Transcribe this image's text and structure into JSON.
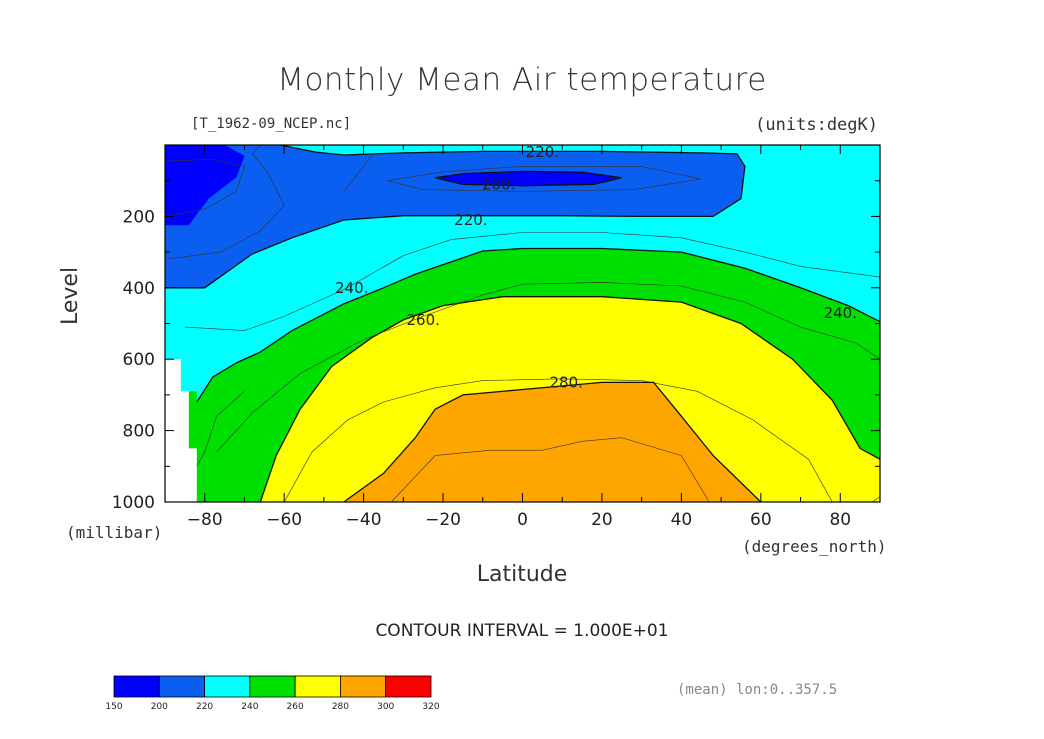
{
  "chart_data": {
    "type": "heatmap",
    "title": "Monthly Mean Air temperature",
    "file_label": "[T_1962-09_NCEP.nc]",
    "units_label": "(units:degK)",
    "xlabel": "Latitude",
    "x_units": "(degrees_north)",
    "ylabel": "Level",
    "y_units": "(millibar)",
    "xlim": [
      -90,
      90
    ],
    "ylim": [
      1000,
      0
    ],
    "x_ticks": [
      -80,
      -60,
      -40,
      -20,
      0,
      20,
      40,
      60,
      80
    ],
    "y_ticks": [
      200,
      400,
      600,
      800,
      1000
    ],
    "contour_interval_text": "CONTOUR INTERVAL = 1.000E+01",
    "mean_note": "(mean) lon:0..357.5",
    "contour_labels": [
      {
        "text": "220.",
        "lat": 5,
        "level": 20
      },
      {
        "text": "200.",
        "lat": -6,
        "level": 110
      },
      {
        "text": "220.",
        "lat": -13,
        "level": 210
      },
      {
        "text": "240.",
        "lat": -43,
        "level": 400
      },
      {
        "text": "260.",
        "lat": -25,
        "level": 490
      },
      {
        "text": "280.",
        "lat": 11,
        "level": 665
      },
      {
        "text": "240.",
        "lat": 80,
        "level": 470
      }
    ],
    "colorbar": {
      "levels": [
        150,
        200,
        220,
        240,
        260,
        280,
        300,
        320
      ],
      "colors": [
        "#0000ff",
        "#0a5ff0",
        "#00ffff",
        "#00e000",
        "#ffff00",
        "#ffa500",
        "#ff0000"
      ]
    },
    "filled_regions": [
      {
        "band": "220-240",
        "color": "#00ffff",
        "points": [
          [
            -90,
            0
          ],
          [
            90,
            0
          ],
          [
            90,
            500
          ],
          [
            76,
            440
          ],
          [
            56,
            392
          ],
          [
            40,
            365
          ],
          [
            20,
            352
          ],
          [
            0,
            346
          ],
          [
            -20,
            346
          ],
          [
            -40,
            360
          ],
          [
            -52,
            385
          ],
          [
            -62,
            420
          ],
          [
            -72,
            455
          ],
          [
            -81,
            478
          ],
          [
            -90,
            485
          ]
        ]
      },
      {
        "band": "200-220",
        "color": "#0a5ff0",
        "points": [
          [
            -90,
            0
          ],
          [
            -61,
            0
          ],
          [
            -52,
            20
          ],
          [
            -45,
            28
          ],
          [
            -30,
            22
          ],
          [
            -10,
            18
          ],
          [
            20,
            18
          ],
          [
            45,
            22
          ],
          [
            54,
            25
          ],
          [
            56,
            60
          ],
          [
            55,
            150
          ],
          [
            48,
            200
          ],
          [
            30,
            200
          ],
          [
            10,
            198
          ],
          [
            -10,
            198
          ],
          [
            -30,
            198
          ],
          [
            -45,
            210
          ],
          [
            -58,
            260
          ],
          [
            -68,
            305
          ],
          [
            -80,
            400
          ],
          [
            -90,
            400
          ]
        ]
      },
      {
        "band": "150-200",
        "color": "#0000ff",
        "points": [
          [
            -90,
            0
          ],
          [
            -75,
            0
          ],
          [
            -70,
            30
          ],
          [
            -72,
            90
          ],
          [
            -79,
            150
          ],
          [
            -84,
            225
          ],
          [
            -90,
            225
          ]
        ]
      },
      {
        "band": "150-200",
        "color": "#0000ff",
        "points": [
          [
            -22,
            92
          ],
          [
            -15,
            80
          ],
          [
            0,
            74
          ],
          [
            15,
            76
          ],
          [
            25,
            92
          ],
          [
            18,
            110
          ],
          [
            0,
            114
          ],
          [
            -15,
            110
          ]
        ]
      },
      {
        "band": "240-260",
        "color": "#00e000",
        "points": [
          [
            -90,
            1000
          ],
          [
            -90,
            610
          ],
          [
            -86,
            600
          ],
          [
            -86,
            690
          ],
          [
            -82,
            690
          ],
          [
            -82,
            720
          ],
          [
            -78,
            650
          ],
          [
            -72,
            610
          ],
          [
            -66,
            580
          ],
          [
            -58,
            520
          ],
          [
            -45,
            445
          ],
          [
            -35,
            400
          ],
          [
            -27,
            362
          ],
          [
            -20,
            335
          ],
          [
            -10,
            297
          ],
          [
            0,
            290
          ],
          [
            20,
            290
          ],
          [
            40,
            300
          ],
          [
            56,
            345
          ],
          [
            70,
            400
          ],
          [
            82,
            450
          ],
          [
            90,
            495
          ],
          [
            90,
            1000
          ]
        ]
      },
      {
        "band": "260-280",
        "color": "#ffff00",
        "points": [
          [
            -66,
            1000
          ],
          [
            -62,
            870
          ],
          [
            -56,
            740
          ],
          [
            -48,
            620
          ],
          [
            -38,
            540
          ],
          [
            -30,
            490
          ],
          [
            -20,
            450
          ],
          [
            -5,
            425
          ],
          [
            20,
            425
          ],
          [
            40,
            440
          ],
          [
            55,
            500
          ],
          [
            68,
            600
          ],
          [
            78,
            715
          ],
          [
            85,
            850
          ],
          [
            90,
            880
          ],
          [
            90,
            1000
          ]
        ]
      },
      {
        "band": "280-300",
        "color": "#ffa500",
        "points": [
          [
            -45,
            1000
          ],
          [
            -35,
            920
          ],
          [
            -27,
            820
          ],
          [
            -22,
            740
          ],
          [
            -15,
            700
          ],
          [
            0,
            685
          ],
          [
            20,
            665
          ],
          [
            33,
            665
          ],
          [
            40,
            760
          ],
          [
            48,
            870
          ],
          [
            60,
            1000
          ]
        ]
      }
    ],
    "contour_lines": [
      {
        "level": 200,
        "points": [
          [
            -22,
            92
          ],
          [
            -15,
            80
          ],
          [
            0,
            74
          ],
          [
            15,
            76
          ],
          [
            25,
            92
          ],
          [
            18,
            110
          ],
          [
            0,
            114
          ],
          [
            -15,
            110
          ],
          [
            -22,
            92
          ]
        ]
      },
      {
        "level": 220,
        "points": [
          [
            -61,
            0
          ],
          [
            -52,
            20
          ],
          [
            -45,
            28
          ],
          [
            -30,
            22
          ],
          [
            -10,
            18
          ],
          [
            20,
            18
          ],
          [
            45,
            22
          ],
          [
            54,
            25
          ],
          [
            56,
            60
          ],
          [
            55,
            150
          ],
          [
            48,
            200
          ],
          [
            30,
            200
          ],
          [
            10,
            198
          ],
          [
            -10,
            198
          ],
          [
            -30,
            198
          ],
          [
            -45,
            210
          ],
          [
            -58,
            260
          ],
          [
            -68,
            305
          ],
          [
            -80,
            400
          ],
          [
            -90,
            400
          ]
        ]
      },
      {
        "level": 240,
        "points": [
          [
            -82,
            720
          ],
          [
            -78,
            650
          ],
          [
            -72,
            610
          ],
          [
            -66,
            580
          ],
          [
            -58,
            520
          ],
          [
            -45,
            445
          ],
          [
            -35,
            400
          ],
          [
            -27,
            362
          ],
          [
            -20,
            335
          ],
          [
            -10,
            297
          ],
          [
            0,
            290
          ],
          [
            20,
            290
          ],
          [
            40,
            300
          ],
          [
            56,
            345
          ],
          [
            70,
            400
          ],
          [
            82,
            450
          ],
          [
            90,
            495
          ]
        ]
      },
      {
        "level": 260,
        "points": [
          [
            -66,
            1000
          ],
          [
            -62,
            870
          ],
          [
            -56,
            740
          ],
          [
            -48,
            620
          ],
          [
            -38,
            540
          ],
          [
            -30,
            490
          ],
          [
            -20,
            450
          ],
          [
            -5,
            425
          ],
          [
            20,
            425
          ],
          [
            40,
            440
          ],
          [
            55,
            500
          ],
          [
            68,
            600
          ],
          [
            78,
            715
          ],
          [
            85,
            850
          ],
          [
            90,
            880
          ]
        ]
      },
      {
        "level": 280,
        "points": [
          [
            -45,
            1000
          ],
          [
            -35,
            920
          ],
          [
            -27,
            820
          ],
          [
            -22,
            740
          ],
          [
            -15,
            700
          ],
          [
            0,
            685
          ],
          [
            20,
            665
          ],
          [
            33,
            665
          ],
          [
            40,
            760
          ],
          [
            48,
            870
          ],
          [
            60,
            1000
          ]
        ]
      }
    ],
    "minor_contours": [
      {
        "points": [
          [
            -90,
            45
          ],
          [
            -78,
            40
          ],
          [
            -70,
            60
          ],
          [
            -72,
            130
          ],
          [
            -80,
            180
          ],
          [
            -90,
            200
          ]
        ]
      },
      {
        "points": [
          [
            -34,
            100
          ],
          [
            -20,
            75
          ],
          [
            0,
            60
          ],
          [
            30,
            60
          ],
          [
            45,
            95
          ],
          [
            28,
            125
          ],
          [
            0,
            130
          ],
          [
            -25,
            125
          ],
          [
            -34,
            100
          ]
        ]
      },
      {
        "points": [
          [
            -90,
            320
          ],
          [
            -76,
            300
          ],
          [
            -66,
            240
          ],
          [
            -60,
            170
          ],
          [
            -64,
            80
          ],
          [
            -68,
            25
          ],
          [
            -66,
            0
          ]
        ]
      },
      {
        "points": [
          [
            -45,
            130
          ],
          [
            -40,
            60
          ],
          [
            -38,
            30
          ]
        ]
      },
      {
        "points": [
          [
            -85,
            510
          ],
          [
            -70,
            520
          ],
          [
            -60,
            480
          ],
          [
            -45,
            405
          ],
          [
            -30,
            310
          ],
          [
            -18,
            265
          ],
          [
            0,
            245
          ],
          [
            20,
            245
          ],
          [
            40,
            260
          ],
          [
            56,
            300
          ],
          [
            70,
            340
          ],
          [
            90,
            370
          ]
        ]
      },
      {
        "points": [
          [
            -77,
            860
          ],
          [
            -68,
            750
          ],
          [
            -56,
            640
          ],
          [
            -40,
            545
          ],
          [
            -25,
            480
          ],
          [
            -10,
            420
          ],
          [
            0,
            390
          ],
          [
            20,
            385
          ],
          [
            40,
            395
          ],
          [
            56,
            440
          ],
          [
            70,
            510
          ],
          [
            84,
            555
          ],
          [
            90,
            600
          ]
        ]
      },
      {
        "points": [
          [
            -60,
            1000
          ],
          [
            -53,
            860
          ],
          [
            -44,
            770
          ],
          [
            -35,
            720
          ],
          [
            -22,
            680
          ],
          [
            -10,
            660
          ],
          [
            10,
            655
          ],
          [
            30,
            660
          ],
          [
            44,
            690
          ],
          [
            58,
            770
          ],
          [
            72,
            880
          ],
          [
            78,
            1000
          ]
        ]
      },
      {
        "points": [
          [
            -33,
            1000
          ],
          [
            -22,
            870
          ],
          [
            -8,
            855
          ],
          [
            5,
            855
          ],
          [
            15,
            830
          ],
          [
            25,
            820
          ],
          [
            40,
            870
          ],
          [
            47,
            1000
          ]
        ]
      },
      {
        "points": [
          [
            -86,
            980
          ],
          [
            -80,
            860
          ],
          [
            -77,
            760
          ],
          [
            -70,
            690
          ]
        ]
      },
      {
        "points": [
          [
            88,
            1000
          ],
          [
            90,
            985
          ]
        ]
      }
    ]
  }
}
